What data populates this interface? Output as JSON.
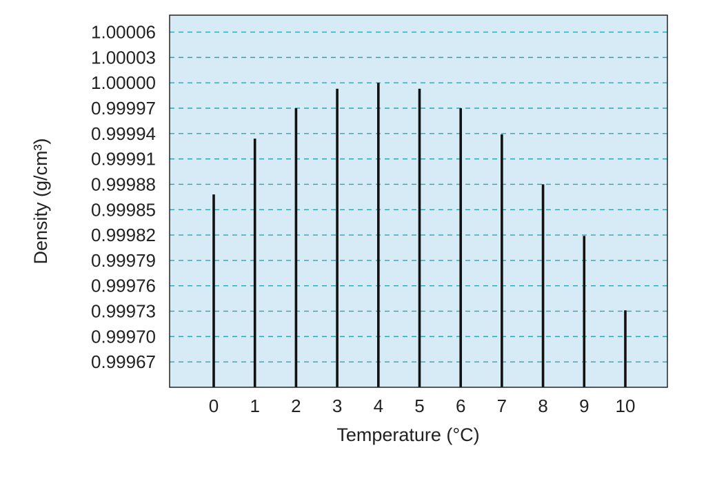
{
  "chart_data": {
    "type": "bar",
    "title": "",
    "xlabel": "Temperature (°C)",
    "ylabel": "Density (g/cm³)",
    "categories": [
      "0",
      "1",
      "2",
      "3",
      "4",
      "5",
      "6",
      "7",
      "8",
      "9",
      "10"
    ],
    "values": [
      0.999868,
      0.999934,
      0.99997,
      0.999993,
      1.0,
      0.999993,
      0.99997,
      0.999939,
      0.99988,
      0.999819,
      0.999731
    ],
    "yticks": [
      "0.99967",
      "0.99970",
      "0.99973",
      "0.99976",
      "0.99979",
      "0.99982",
      "0.99985",
      "0.99988",
      "0.99991",
      "0.99994",
      "0.99997",
      "1.00000",
      "1.00003",
      "1.00006"
    ],
    "ylim": [
      0.99964,
      1.00008
    ],
    "grid": true,
    "colors": {
      "plot_background": "#d6ebf5",
      "gridline": "#2aa4b3",
      "bar": "#111111",
      "frame": "#222222"
    }
  }
}
